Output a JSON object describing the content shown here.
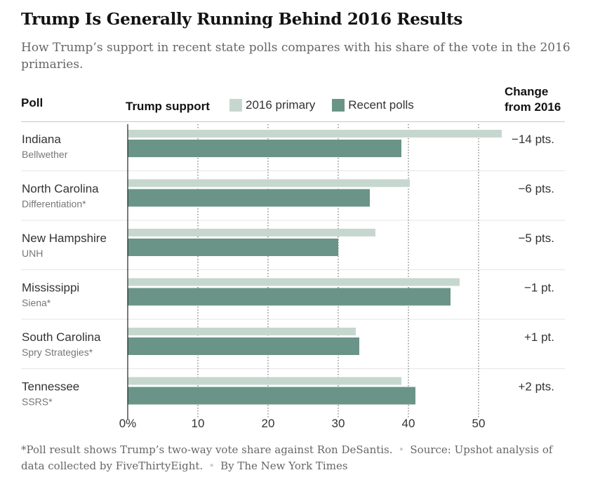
{
  "header": {
    "title": "Trump Is Generally Running Behind 2016 Results",
    "subtitle": "How Trump’s support in recent state polls compares with his share of the vote in the 2016 primaries."
  },
  "columns": {
    "poll": "Poll",
    "support": "Trump support",
    "change_line1": "Change",
    "change_line2": "from 2016"
  },
  "legend": [
    {
      "label": "2016 primary",
      "color": "#c6d7cf"
    },
    {
      "label": "Recent polls",
      "color": "#6a9487"
    }
  ],
  "chart_data": {
    "type": "bar",
    "orientation": "horizontal",
    "categories": [
      "Indiana",
      "North Carolina",
      "New Hampshire",
      "Mississippi",
      "South Carolina",
      "Tennessee"
    ],
    "pollsters": [
      "Bellwether",
      "Differentiation*",
      "UNH",
      "Siena*",
      "Spry Strategies*",
      "SSRS*"
    ],
    "series": [
      {
        "name": "2016 primary",
        "values": [
          53.3,
          40.2,
          35.3,
          47.3,
          32.5,
          39.0
        ],
        "color": "#c6d7cf"
      },
      {
        "name": "Recent polls",
        "values": [
          39.0,
          34.5,
          30.0,
          46.0,
          33.0,
          41.0
        ],
        "color": "#6a9487"
      }
    ],
    "change": [
      "−14 pts.",
      "−6 pts.",
      "−5 pts.",
      "−1 pt.",
      "+1 pt.",
      "+2 pts."
    ],
    "xlim": [
      0,
      50
    ],
    "xticks": [
      0,
      10,
      20,
      30,
      40,
      50
    ],
    "xtick_labels": [
      "0%",
      "10",
      "20",
      "30",
      "40",
      "50"
    ],
    "grid": "dotted vertical gridlines at 10, 20, 30, 40, 50"
  },
  "footer": {
    "note": "*Poll result shows Trump’s two-way vote share against Ron DeSantis.",
    "source": "Source: Upshot analysis of data collected by FiveThirtyEight.",
    "byline": "By The New York Times"
  }
}
